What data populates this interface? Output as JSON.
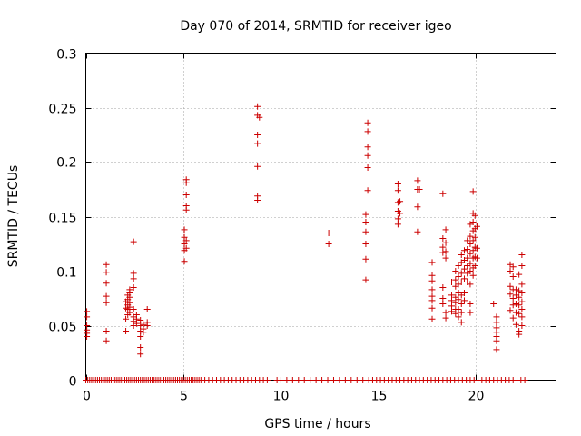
{
  "chart_data": {
    "type": "scatter",
    "title": "Day 070 of 2014, SRMTID for receiver igeo",
    "xlabel": "GPS time / hours",
    "ylabel": "SRMTID / TECUs",
    "xlim": [
      0,
      24.1
    ],
    "ylim": [
      0,
      0.3
    ],
    "x_ticks": [
      0,
      5,
      10,
      15,
      20
    ],
    "x_tick_labels": [
      "0",
      "5",
      "10",
      "15",
      "20"
    ],
    "y_ticks": [
      0,
      0.05,
      0.1,
      0.15,
      0.2,
      0.25,
      0.3
    ],
    "y_tick_labels": [
      "0",
      "0.05",
      "0.1",
      "0.15",
      "0.2",
      "0.25",
      "0.3"
    ],
    "grid": true,
    "marker": "+",
    "color": "#cc0000",
    "series": [
      {
        "name": "SRMTID",
        "points": [
          [
            0.05,
            0.063
          ],
          [
            0.05,
            0.058
          ],
          [
            0.05,
            0.05
          ],
          [
            0.05,
            0.046
          ],
          [
            0.05,
            0.043
          ],
          [
            0.05,
            0.04
          ],
          [
            1.05,
            0.106
          ],
          [
            1.05,
            0.099
          ],
          [
            1.05,
            0.089
          ],
          [
            1.05,
            0.077
          ],
          [
            1.05,
            0.071
          ],
          [
            1.05,
            0.045
          ],
          [
            1.05,
            0.036
          ],
          [
            2.05,
            0.072
          ],
          [
            2.05,
            0.066
          ],
          [
            2.05,
            0.056
          ],
          [
            2.05,
            0.045
          ],
          [
            2.15,
            0.078
          ],
          [
            2.15,
            0.074
          ],
          [
            2.15,
            0.069
          ],
          [
            2.15,
            0.065
          ],
          [
            2.15,
            0.06
          ],
          [
            2.25,
            0.083
          ],
          [
            2.25,
            0.08
          ],
          [
            2.25,
            0.076
          ],
          [
            2.25,
            0.071
          ],
          [
            2.25,
            0.067
          ],
          [
            2.25,
            0.062
          ],
          [
            2.45,
            0.127
          ],
          [
            2.45,
            0.098
          ],
          [
            2.45,
            0.093
          ],
          [
            2.45,
            0.085
          ],
          [
            2.45,
            0.065
          ],
          [
            2.45,
            0.058
          ],
          [
            2.45,
            0.054
          ],
          [
            2.45,
            0.05
          ],
          [
            2.6,
            0.06
          ],
          [
            2.6,
            0.056
          ],
          [
            2.6,
            0.052
          ],
          [
            2.8,
            0.055
          ],
          [
            2.8,
            0.05
          ],
          [
            2.8,
            0.045
          ],
          [
            2.8,
            0.04
          ],
          [
            2.8,
            0.03
          ],
          [
            2.8,
            0.024
          ],
          [
            2.95,
            0.051
          ],
          [
            2.95,
            0.047
          ],
          [
            2.95,
            0.044
          ],
          [
            3.15,
            0.065
          ],
          [
            3.15,
            0.053
          ],
          [
            3.15,
            0.05
          ],
          [
            5.05,
            0.138
          ],
          [
            5.05,
            0.131
          ],
          [
            5.05,
            0.125
          ],
          [
            5.05,
            0.119
          ],
          [
            5.05,
            0.109
          ],
          [
            5.15,
            0.184
          ],
          [
            5.15,
            0.181
          ],
          [
            5.15,
            0.17
          ],
          [
            5.15,
            0.16
          ],
          [
            5.15,
            0.156
          ],
          [
            5.15,
            0.128
          ],
          [
            5.15,
            0.121
          ],
          [
            8.8,
            0.251
          ],
          [
            8.8,
            0.243
          ],
          [
            8.8,
            0.225
          ],
          [
            8.8,
            0.217
          ],
          [
            8.8,
            0.196
          ],
          [
            8.8,
            0.169
          ],
          [
            8.8,
            0.165
          ],
          [
            8.9,
            0.241
          ],
          [
            12.45,
            0.135
          ],
          [
            12.45,
            0.125
          ],
          [
            14.35,
            0.152
          ],
          [
            14.35,
            0.145
          ],
          [
            14.35,
            0.136
          ],
          [
            14.35,
            0.125
          ],
          [
            14.35,
            0.111
          ],
          [
            14.35,
            0.092
          ],
          [
            14.45,
            0.236
          ],
          [
            14.45,
            0.228
          ],
          [
            14.45,
            0.214
          ],
          [
            14.45,
            0.206
          ],
          [
            14.45,
            0.195
          ],
          [
            14.45,
            0.174
          ],
          [
            16.0,
            0.18
          ],
          [
            16.0,
            0.174
          ],
          [
            16.0,
            0.163
          ],
          [
            16.0,
            0.155
          ],
          [
            16.0,
            0.148
          ],
          [
            16.0,
            0.143
          ],
          [
            16.1,
            0.164
          ],
          [
            16.1,
            0.153
          ],
          [
            17.0,
            0.183
          ],
          [
            17.0,
            0.175
          ],
          [
            17.0,
            0.159
          ],
          [
            17.0,
            0.136
          ],
          [
            17.1,
            0.175
          ],
          [
            17.75,
            0.108
          ],
          [
            17.75,
            0.096
          ],
          [
            17.75,
            0.091
          ],
          [
            17.75,
            0.083
          ],
          [
            17.75,
            0.077
          ],
          [
            17.75,
            0.073
          ],
          [
            17.75,
            0.066
          ],
          [
            17.75,
            0.056
          ],
          [
            18.3,
            0.171
          ],
          [
            18.3,
            0.13
          ],
          [
            18.3,
            0.122
          ],
          [
            18.3,
            0.117
          ],
          [
            18.3,
            0.085
          ],
          [
            18.3,
            0.075
          ],
          [
            18.3,
            0.07
          ],
          [
            18.45,
            0.138
          ],
          [
            18.45,
            0.126
          ],
          [
            18.45,
            0.118
          ],
          [
            18.45,
            0.112
          ],
          [
            18.45,
            0.062
          ],
          [
            18.45,
            0.057
          ],
          [
            18.75,
            0.09
          ],
          [
            18.75,
            0.078
          ],
          [
            18.75,
            0.073
          ],
          [
            18.75,
            0.068
          ],
          [
            18.75,
            0.063
          ],
          [
            18.95,
            0.1
          ],
          [
            18.95,
            0.092
          ],
          [
            18.95,
            0.086
          ],
          [
            18.95,
            0.076
          ],
          [
            18.95,
            0.071
          ],
          [
            18.95,
            0.065
          ],
          [
            18.95,
            0.061
          ],
          [
            19.1,
            0.105
          ],
          [
            19.1,
            0.095
          ],
          [
            19.1,
            0.088
          ],
          [
            19.1,
            0.08
          ],
          [
            19.1,
            0.074
          ],
          [
            19.1,
            0.065
          ],
          [
            19.1,
            0.058
          ],
          [
            19.25,
            0.115
          ],
          [
            19.25,
            0.108
          ],
          [
            19.25,
            0.098
          ],
          [
            19.25,
            0.09
          ],
          [
            19.25,
            0.078
          ],
          [
            19.25,
            0.07
          ],
          [
            19.25,
            0.062
          ],
          [
            19.25,
            0.053
          ],
          [
            19.4,
            0.119
          ],
          [
            19.4,
            0.11
          ],
          [
            19.4,
            0.102
          ],
          [
            19.4,
            0.093
          ],
          [
            19.4,
            0.08
          ],
          [
            19.4,
            0.073
          ],
          [
            19.55,
            0.128
          ],
          [
            19.55,
            0.12
          ],
          [
            19.55,
            0.112
          ],
          [
            19.55,
            0.105
          ],
          [
            19.55,
            0.098
          ],
          [
            19.55,
            0.09
          ],
          [
            19.7,
            0.143
          ],
          [
            19.7,
            0.132
          ],
          [
            19.7,
            0.125
          ],
          [
            19.7,
            0.116
          ],
          [
            19.7,
            0.107
          ],
          [
            19.7,
            0.1
          ],
          [
            19.7,
            0.088
          ],
          [
            19.7,
            0.07
          ],
          [
            19.7,
            0.062
          ],
          [
            19.85,
            0.173
          ],
          [
            19.85,
            0.153
          ],
          [
            19.85,
            0.145
          ],
          [
            19.85,
            0.137
          ],
          [
            19.85,
            0.128
          ],
          [
            19.85,
            0.119
          ],
          [
            19.85,
            0.112
          ],
          [
            19.85,
            0.103
          ],
          [
            19.85,
            0.096
          ],
          [
            19.95,
            0.151
          ],
          [
            19.95,
            0.139
          ],
          [
            19.95,
            0.131
          ],
          [
            19.95,
            0.122
          ],
          [
            19.95,
            0.113
          ],
          [
            19.95,
            0.105
          ],
          [
            20.05,
            0.141
          ],
          [
            20.05,
            0.121
          ],
          [
            20.05,
            0.112
          ],
          [
            20.9,
            0.07
          ],
          [
            21.05,
            0.058
          ],
          [
            21.05,
            0.053
          ],
          [
            21.05,
            0.048
          ],
          [
            21.05,
            0.044
          ],
          [
            21.05,
            0.04
          ],
          [
            21.05,
            0.036
          ],
          [
            21.05,
            0.028
          ],
          [
            21.75,
            0.106
          ],
          [
            21.75,
            0.1
          ],
          [
            21.75,
            0.086
          ],
          [
            21.75,
            0.079
          ],
          [
            21.75,
            0.064
          ],
          [
            21.9,
            0.104
          ],
          [
            21.9,
            0.095
          ],
          [
            21.9,
            0.083
          ],
          [
            21.9,
            0.075
          ],
          [
            21.9,
            0.069
          ],
          [
            21.9,
            0.057
          ],
          [
            22.05,
            0.083
          ],
          [
            22.05,
            0.078
          ],
          [
            22.05,
            0.07
          ],
          [
            22.05,
            0.062
          ],
          [
            22.05,
            0.051
          ],
          [
            22.2,
            0.097
          ],
          [
            22.2,
            0.082
          ],
          [
            22.2,
            0.076
          ],
          [
            22.2,
            0.069
          ],
          [
            22.2,
            0.061
          ],
          [
            22.2,
            0.045
          ],
          [
            22.2,
            0.042
          ],
          [
            22.35,
            0.115
          ],
          [
            22.35,
            0.105
          ],
          [
            22.35,
            0.088
          ],
          [
            22.35,
            0.08
          ],
          [
            22.35,
            0.072
          ],
          [
            22.35,
            0.065
          ],
          [
            22.35,
            0.058
          ],
          [
            22.35,
            0.05
          ]
        ],
        "zero_x": [
          0.0,
          0.1,
          0.2,
          0.3,
          0.4,
          0.5,
          0.6,
          0.7,
          0.8,
          0.9,
          1.0,
          1.1,
          1.2,
          1.3,
          1.4,
          1.5,
          1.6,
          1.7,
          1.8,
          1.9,
          2.0,
          2.1,
          2.2,
          2.3,
          2.4,
          2.5,
          2.6,
          2.7,
          2.8,
          2.9,
          3.0,
          3.1,
          3.2,
          3.3,
          3.4,
          3.5,
          3.6,
          3.7,
          3.8,
          3.9,
          4.0,
          4.1,
          4.2,
          4.3,
          4.4,
          4.5,
          4.6,
          4.7,
          4.8,
          4.9,
          5.0,
          5.1,
          5.2,
          5.3,
          5.4,
          5.5,
          5.6,
          5.7,
          5.8,
          5.9,
          6.1,
          6.3,
          6.5,
          6.7,
          6.9,
          7.1,
          7.3,
          7.5,
          7.7,
          7.9,
          8.1,
          8.3,
          8.5,
          8.7,
          8.9,
          9.1,
          9.3,
          9.8,
          10.0,
          10.3,
          10.6,
          10.9,
          11.2,
          11.5,
          11.8,
          12.1,
          12.4,
          12.7,
          13.0,
          13.3,
          13.6,
          13.9,
          14.2,
          14.5,
          14.7,
          14.9,
          15.1,
          15.3,
          15.5,
          15.7,
          15.9,
          16.1,
          16.3,
          16.5,
          16.7,
          16.9,
          17.1,
          17.3,
          17.5,
          17.7,
          17.9,
          18.1,
          18.3,
          18.5,
          18.7,
          18.9,
          19.1,
          19.3,
          19.5,
          19.7,
          19.9,
          20.1,
          20.3,
          20.5,
          20.7,
          20.9,
          21.1,
          21.3,
          21.5,
          21.7,
          21.9,
          22.1,
          22.3,
          22.5
        ]
      }
    ]
  }
}
